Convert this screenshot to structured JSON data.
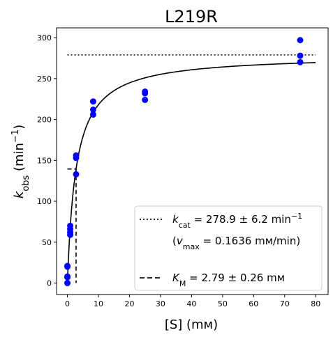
{
  "chart_data": {
    "type": "scatter",
    "title": "L219R",
    "xlabel": "[S] (mм)",
    "ylabel": "k_obs (min⁻¹)",
    "ylabel_main": "k",
    "ylabel_sub": "obs",
    "ylabel_unit_open": " (min",
    "ylabel_unit_sup": "−1",
    "ylabel_unit_close": ")",
    "xlim": [
      -3.5,
      84
    ],
    "ylim": [
      -14,
      312
    ],
    "xticks": [
      0,
      10,
      20,
      30,
      40,
      50,
      60,
      70,
      80
    ],
    "yticks": [
      0,
      50,
      100,
      150,
      200,
      250,
      300
    ],
    "grid": false,
    "legend_position": "lower-right",
    "point_color": "#0000ff",
    "line_color": "#000000",
    "points": [
      {
        "x": 0,
        "y": 0
      },
      {
        "x": 0,
        "y": 7
      },
      {
        "x": 0,
        "y": 8
      },
      {
        "x": 0,
        "y": 20
      },
      {
        "x": 0,
        "y": 21
      },
      {
        "x": 0.9,
        "y": 59
      },
      {
        "x": 0.9,
        "y": 62
      },
      {
        "x": 0.9,
        "y": 66
      },
      {
        "x": 0.9,
        "y": 70
      },
      {
        "x": 2.8,
        "y": 133
      },
      {
        "x": 2.8,
        "y": 153
      },
      {
        "x": 2.8,
        "y": 156
      },
      {
        "x": 8.3,
        "y": 206
      },
      {
        "x": 8.3,
        "y": 212
      },
      {
        "x": 8.3,
        "y": 222
      },
      {
        "x": 25,
        "y": 224
      },
      {
        "x": 25,
        "y": 232
      },
      {
        "x": 25,
        "y": 234
      },
      {
        "x": 75,
        "y": 270
      },
      {
        "x": 75,
        "y": 278
      },
      {
        "x": 75,
        "y": 297
      }
    ],
    "fit": {
      "kcat": 278.9,
      "km": 2.79,
      "x_range": [
        0,
        80
      ]
    },
    "kcat_line": {
      "y": 278.9,
      "x_range": [
        0,
        80
      ]
    },
    "km_line": {
      "x": 2.79,
      "y": 139.45,
      "x_start": 0
    },
    "legend": {
      "kcat": {
        "main": "k",
        "sub": "cat",
        "rest": " = 278.9 ± 6.2 min",
        "sup": "−1"
      },
      "vmax": {
        "open": "(",
        "main": "v",
        "sub": "max",
        "rest": " = 0.1636 mм/min)"
      },
      "km": {
        "main": "K",
        "sub": "M",
        "rest": " = 2.79 ± 0.26 mм"
      }
    }
  }
}
